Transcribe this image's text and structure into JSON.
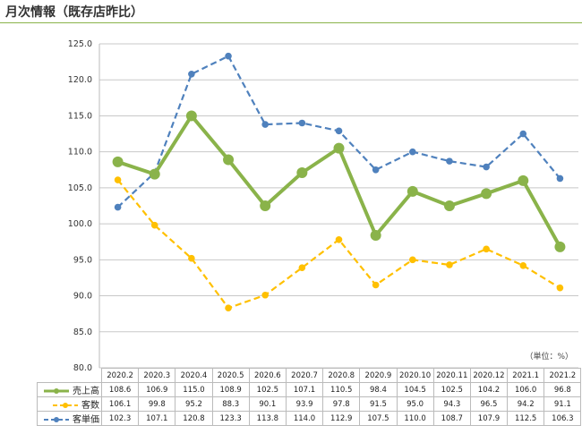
{
  "title": "月次情報（既存店昨比）",
  "unit": "（単位：%）",
  "chart_data": {
    "type": "line",
    "categories": [
      "2020.2",
      "2020.3",
      "2020.4",
      "2020.5",
      "2020.6",
      "2020.7",
      "2020.8",
      "2020.9",
      "2020.10",
      "2020.11",
      "2020.12",
      "2021.1",
      "2021.2"
    ],
    "ylim": [
      80,
      125
    ],
    "yticks": [
      "80.0",
      "85.0",
      "90.0",
      "95.0",
      "100.0",
      "105.0",
      "110.0",
      "115.0",
      "120.0",
      "125.0"
    ],
    "grid": true,
    "series": [
      {
        "name": "売上高",
        "color": "#8ab34a",
        "style": "solid",
        "values": [
          108.6,
          106.9,
          115.0,
          108.9,
          102.5,
          107.1,
          110.5,
          98.4,
          104.5,
          102.5,
          104.2,
          106.0,
          96.8
        ]
      },
      {
        "name": "客数",
        "color": "#ffc000",
        "style": "dashed",
        "values": [
          106.1,
          99.8,
          95.2,
          88.3,
          90.1,
          93.9,
          97.8,
          91.5,
          95.0,
          94.3,
          96.5,
          94.2,
          91.1
        ]
      },
      {
        "name": "客単価",
        "color": "#4f81bd",
        "style": "dashed",
        "values": [
          102.3,
          107.1,
          120.8,
          123.3,
          113.8,
          114.0,
          112.9,
          107.5,
          110.0,
          108.7,
          107.9,
          112.5,
          106.3
        ]
      }
    ]
  }
}
